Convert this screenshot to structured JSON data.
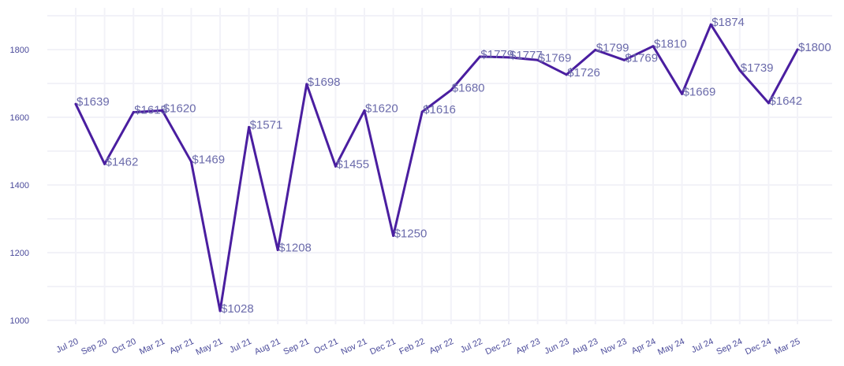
{
  "chart_data": {
    "type": "line",
    "title": "",
    "xlabel": "",
    "ylabel": "",
    "categories": [
      "Jul 20",
      "Sep 20",
      "Oct 20",
      "Mar 21",
      "Apr 21",
      "May 21",
      "Jul 21",
      "Aug 21",
      "Sep 21",
      "Oct 21",
      "Nov 21",
      "Dec 21",
      "Feb 22",
      "Apr 22",
      "Jul 22",
      "Dec 22",
      "Apr 23",
      "Jun 23",
      "Aug 23",
      "Nov 23",
      "Apr 24",
      "May 24",
      "Jul 24",
      "Sep 24",
      "Dec 24",
      "Mar 25"
    ],
    "values": [
      1639,
      1462,
      1615,
      1620,
      1469,
      1028,
      1571,
      1208,
      1698,
      1455,
      1620,
      1250,
      1616,
      1680,
      1779,
      1777,
      1769,
      1726,
      1799,
      1769,
      1810,
      1669,
      1874,
      1739,
      1642,
      1800
    ],
    "data_labels": [
      "$1639",
      "$1462",
      "$1615",
      "$1620",
      "$1469",
      "$1028",
      "$1571",
      "$1208",
      "$1698",
      "$1455",
      "$1620",
      "$1250",
      "$1616",
      "$1680",
      "$1779",
      "$1777",
      "$1769",
      "$1726",
      "$1799",
      "$1769",
      "$1810",
      "$1669",
      "$1874",
      "$1739",
      "$1642",
      "$1800"
    ],
    "yticks": [
      1000,
      1200,
      1400,
      1600,
      1800
    ],
    "ylim": [
      1000,
      1874
    ],
    "grid": true,
    "line_color": "#4a1ea0"
  }
}
